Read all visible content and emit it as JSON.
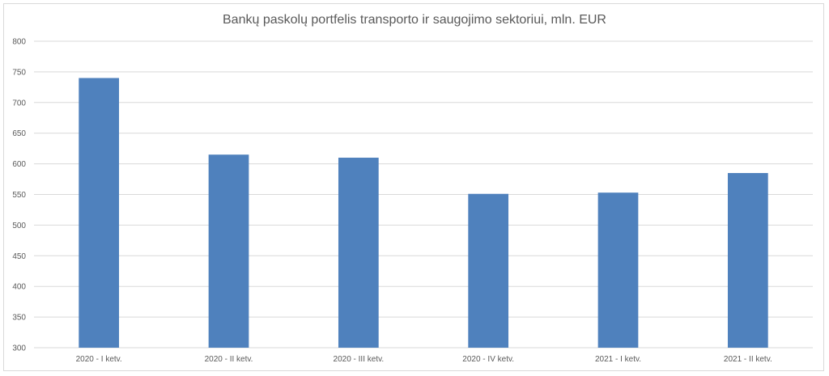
{
  "chart_data": {
    "type": "bar",
    "title": "Bankų paskolų portfelis transporto ir saugojimo sektoriui, mln. EUR",
    "categories": [
      "2020 - I ketv.",
      "2020 - II ketv.",
      "2020 - III ketv.",
      "2020 - IV ketv.",
      "2021 - I ketv.",
      "2021 - II ketv."
    ],
    "series": [
      {
        "values": [
          740,
          615,
          610,
          551,
          553,
          585
        ]
      }
    ],
    "xlabel": "",
    "ylabel": "",
    "ylim": [
      300,
      800
    ],
    "yticks": [
      300,
      350,
      400,
      450,
      500,
      550,
      600,
      650,
      700,
      750,
      800
    ],
    "grid": true,
    "legend": "none",
    "colors": {
      "bar": "#4f81bd",
      "grid": "#d9d9d9",
      "text": "#595959"
    }
  }
}
